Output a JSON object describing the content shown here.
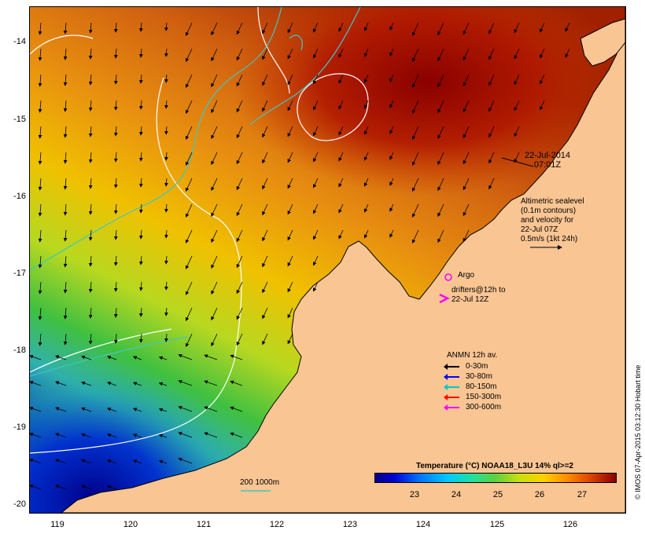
{
  "map": {
    "date": "22-Jul-2014",
    "time": "07:01Z",
    "sealevel_note": [
      "Altimetric sealevel",
      "(0.1m contours)",
      "and velocity for",
      "22-Jul 07Z",
      "0.5m/s (1kt 24h)"
    ],
    "argo_label": "Argo",
    "drifters_label": [
      "drifters@12h to",
      "22-Jul 12Z"
    ],
    "anmn_title": "ANMN 12h av.",
    "anmn_legend": [
      {
        "label": "0-30m",
        "color": "#000000"
      },
      {
        "label": "30-80m",
        "color": "#0000ff"
      },
      {
        "label": "80-150m",
        "color": "#00c8c8"
      },
      {
        "label": "150-300m",
        "color": "#ff0000"
      },
      {
        "label": "300-600m",
        "color": "#ff00ff"
      }
    ],
    "bathy_label": "200  1000m",
    "colorbar_title": "Temperature (°C) NOAA18_L3U 14% ql>=2",
    "colorbar_ticks": [
      "23",
      "24",
      "25",
      "26",
      "27"
    ],
    "credit": "© IMOS 07-Apr-2015 03:12:30 Hobart time",
    "x_ticks": [
      "119",
      "120",
      "121",
      "122",
      "123",
      "124",
      "125",
      "126"
    ],
    "y_ticks": [
      "-14",
      "-15",
      "-16",
      "-17",
      "-18",
      "-19",
      "-20"
    ],
    "colors": {
      "land": "#f9c593",
      "coast": "#000000",
      "contour_white": "#ffffff",
      "contour_cyan": "#40c8c0",
      "argo": "#ff00ff"
    }
  }
}
